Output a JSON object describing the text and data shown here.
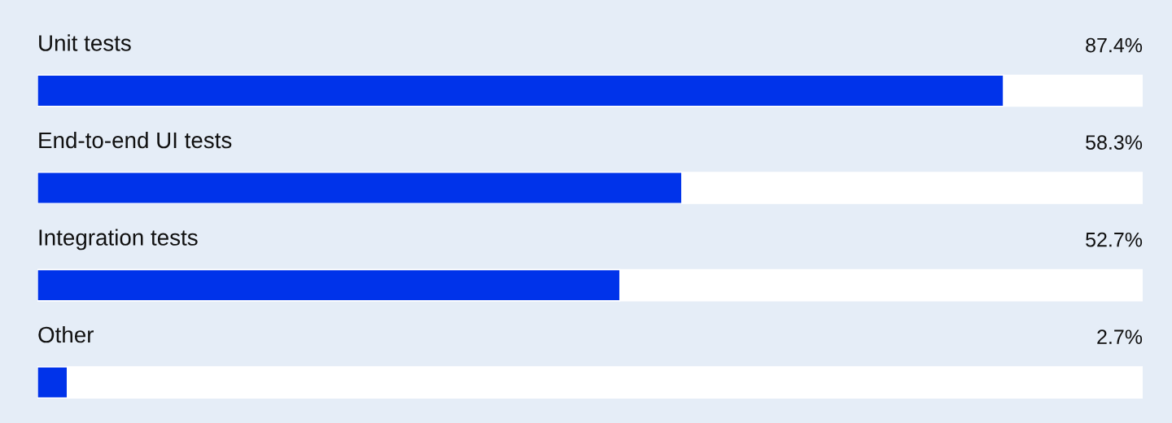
{
  "chart_data": {
    "type": "bar",
    "orientation": "horizontal",
    "categories": [
      "Unit tests",
      "End-to-end UI tests",
      "Integration tests",
      "Other"
    ],
    "values": [
      87.4,
      58.3,
      52.7,
      2.7
    ],
    "value_labels": [
      "87.4%",
      "58.3%",
      "52.7%",
      "2.7%"
    ],
    "color": "#0033ea",
    "xlim": [
      0,
      100
    ],
    "tick_labels": false
  }
}
